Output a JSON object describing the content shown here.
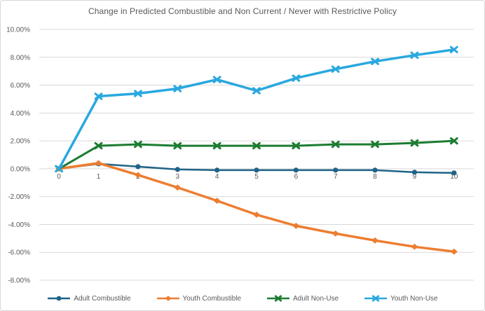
{
  "chart": {
    "title": "Change in Predicted Combustible and Non Current / Never with Restrictive Policy"
  },
  "chart_data": {
    "type": "line",
    "title": "Change in Predicted Combustible and Non Current / Never with Restrictive Policy",
    "xlabel": "",
    "ylabel": "",
    "x_labels": [
      "0",
      "1",
      "2",
      "3",
      "4",
      "5",
      "6",
      "7",
      "8",
      "9",
      "10"
    ],
    "ylim": [
      -8,
      10
    ],
    "ytick_step": 2,
    "ytick_labels": [
      "10.00%",
      "8.00%",
      "6.00%",
      "4.00%",
      "2.00%",
      "0.00%",
      "-2.00%",
      "-4.00%",
      "-6.00%",
      "-8.00%"
    ],
    "ytick_values": [
      10,
      8,
      6,
      4,
      2,
      0,
      -2,
      -4,
      -6,
      -8
    ],
    "grid": "horizontal",
    "grid_color": "#d9d9d9",
    "axis_text_color": "#595959",
    "legend_position": "bottom",
    "series": [
      {
        "name": "Adult Combustible",
        "color": "#1f6387",
        "marker": "circle",
        "line_width": 2.5,
        "values": [
          0.0,
          0.35,
          0.15,
          -0.05,
          -0.1,
          -0.1,
          -0.1,
          -0.1,
          -0.1,
          -0.25,
          -0.3
        ]
      },
      {
        "name": "Youth Combustible",
        "color": "#ed7d31",
        "marker": "diamond",
        "line_width": 3.5,
        "values": [
          0.0,
          0.4,
          -0.45,
          -1.35,
          -2.3,
          -3.3,
          -4.1,
          -4.65,
          -5.15,
          -5.6,
          -5.95
        ]
      },
      {
        "name": "Adult Non-Use",
        "color": "#1c7c31",
        "marker": "x",
        "line_width": 3,
        "values": [
          0.0,
          1.65,
          1.75,
          1.65,
          1.65,
          1.65,
          1.65,
          1.75,
          1.75,
          1.85,
          2.0
        ]
      },
      {
        "name": "Youth Non-Use",
        "color": "#29a8df",
        "marker": "x",
        "line_width": 3.5,
        "values": [
          0.0,
          5.2,
          5.4,
          5.75,
          6.4,
          5.6,
          6.5,
          7.15,
          7.7,
          8.15,
          8.55
        ]
      }
    ]
  }
}
